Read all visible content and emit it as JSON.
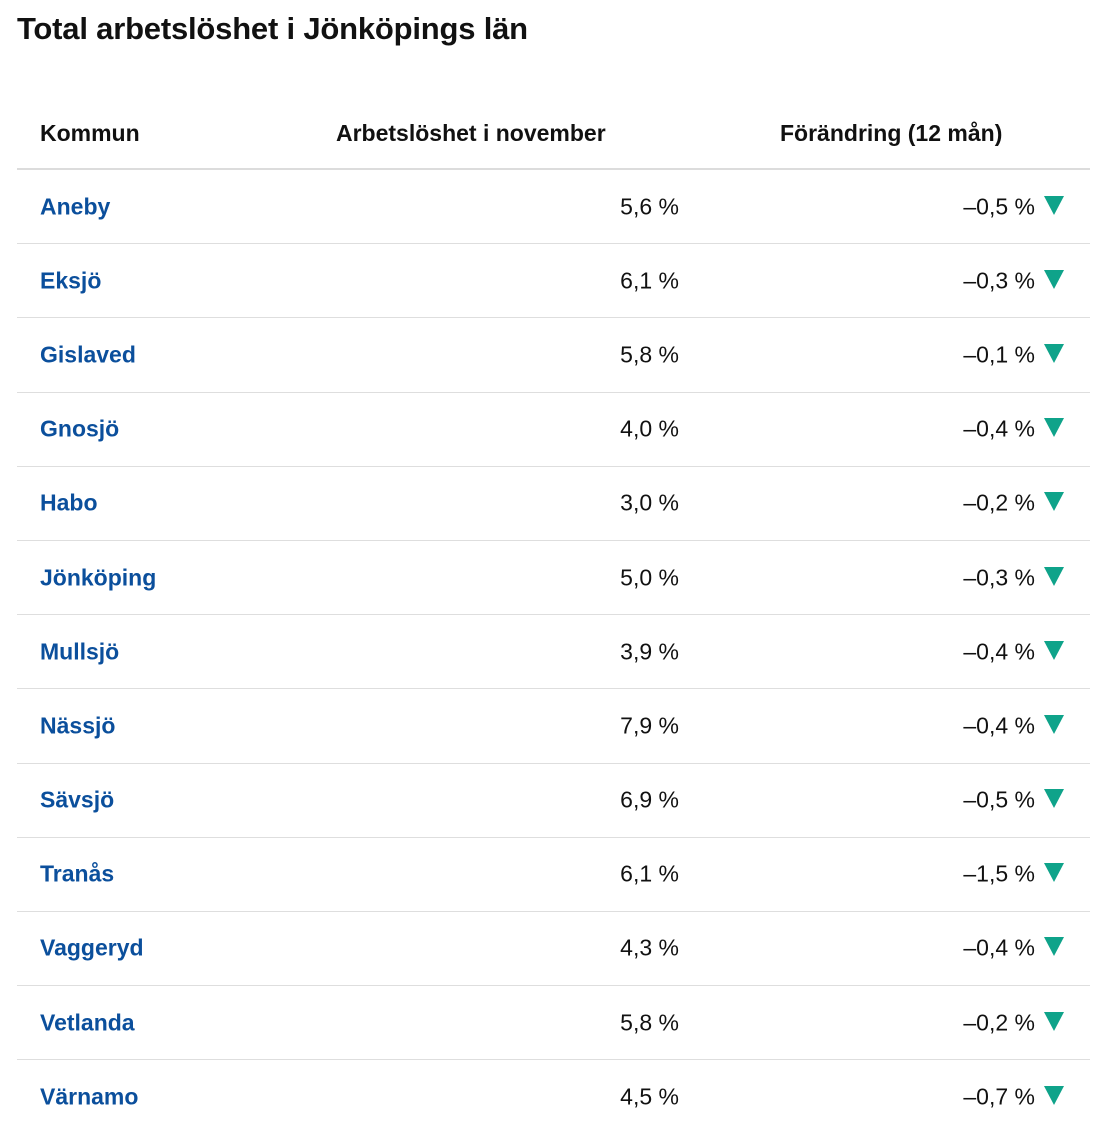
{
  "title": "Total arbetslöshet i Jönköpings län",
  "table": {
    "headers": {
      "kommun": "Kommun",
      "rate": "Arbetslöshet i november",
      "change": "Förändring (12 mån)"
    },
    "trend_icon": "triangle-down-icon",
    "trend_color": "#0fa38a",
    "link_color": "#0b4f9c",
    "rows": [
      {
        "kommun": "Aneby",
        "rate": "5,6 %",
        "change": "–0,5 %"
      },
      {
        "kommun": "Eksjö",
        "rate": "6,1 %",
        "change": "–0,3 %"
      },
      {
        "kommun": "Gislaved",
        "rate": "5,8 %",
        "change": "–0,1 %"
      },
      {
        "kommun": "Gnosjö",
        "rate": "4,0 %",
        "change": "–0,4 %"
      },
      {
        "kommun": "Habo",
        "rate": "3,0 %",
        "change": "–0,2 %"
      },
      {
        "kommun": "Jönköping",
        "rate": "5,0 %",
        "change": "–0,3 %"
      },
      {
        "kommun": "Mullsjö",
        "rate": "3,9 %",
        "change": "–0,4 %"
      },
      {
        "kommun": "Nässjö",
        "rate": "7,9 %",
        "change": "–0,4 %"
      },
      {
        "kommun": "Sävsjö",
        "rate": "6,9 %",
        "change": "–0,5 %"
      },
      {
        "kommun": "Tranås",
        "rate": "6,1 %",
        "change": "–1,5 %"
      },
      {
        "kommun": "Vaggeryd",
        "rate": "4,3 %",
        "change": "–0,4 %"
      },
      {
        "kommun": "Vetlanda",
        "rate": "5,8 %",
        "change": "–0,2 %"
      },
      {
        "kommun": "Värnamo",
        "rate": "4,5 %",
        "change": "–0,7 %"
      }
    ]
  }
}
